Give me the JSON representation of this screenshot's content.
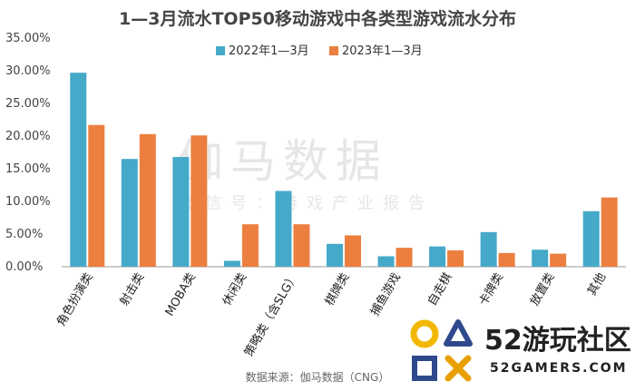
{
  "chart_data": {
    "type": "bar",
    "title": "1—3月流水TOP50移动游戏中各类型游戏流水分布",
    "categories": [
      "角色扮演类",
      "射击类",
      "MOBA类",
      "休闲类",
      "策略类（含SLG）",
      "棋牌类",
      "捕鱼游戏",
      "自走棋",
      "卡牌类",
      "放置类",
      "其他"
    ],
    "series": [
      {
        "name": "2022年1—3月",
        "color": "#45a9c9",
        "values": [
          29.7,
          16.5,
          16.8,
          0.9,
          11.6,
          3.5,
          1.6,
          3.1,
          5.3,
          2.6,
          8.5
        ]
      },
      {
        "name": "2023年1—3月",
        "color": "#ec7f3f",
        "values": [
          21.7,
          20.3,
          20.1,
          6.5,
          6.5,
          4.8,
          2.9,
          2.5,
          2.1,
          2.0,
          10.6
        ]
      }
    ],
    "yticks": [
      "0.00%",
      "5.00%",
      "10.00%",
      "15.00%",
      "20.00%",
      "25.00%",
      "30.00%",
      "35.00%"
    ],
    "ylim": [
      0,
      35
    ],
    "legend_position": "top-center",
    "grid": false
  },
  "source": "数据来源：伽马数据（CNG）",
  "watermark": {
    "main": "伽马数据",
    "sub": "微信号：游戏产业报告"
  },
  "logo": {
    "big": "52游玩社区",
    "small": "52GAMERS.COM",
    "icon_colors": [
      "#f2b700",
      "#2e4a8c",
      "#e8a000",
      "#2e4a8c"
    ]
  }
}
